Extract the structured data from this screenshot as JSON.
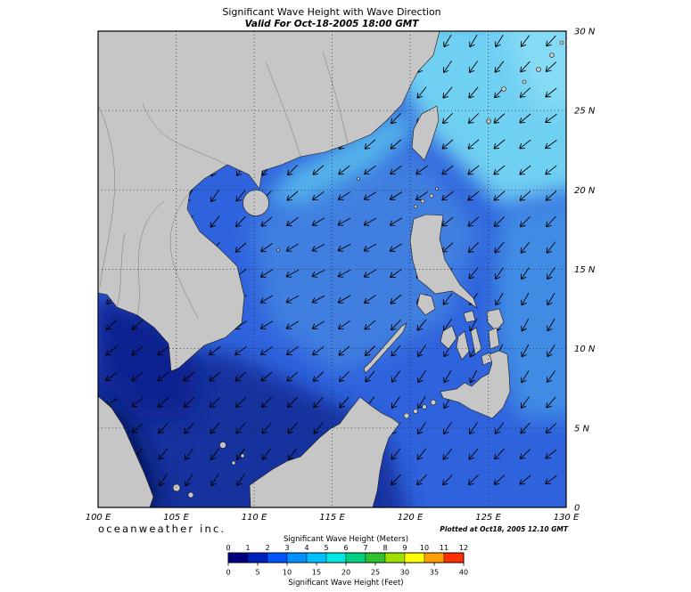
{
  "header": {
    "title": "Significant Wave Height with Wave Direction",
    "subtitle": "Valid For Oct-18-2005 18:00 GMT"
  },
  "map": {
    "lon_labels": [
      "100 E",
      "105 E",
      "110 E",
      "115 E",
      "120 E",
      "125 E",
      "130 E"
    ],
    "lat_labels": [
      "0",
      "5 N",
      "10 N",
      "15 N",
      "20 N",
      "25 N",
      "30 N"
    ],
    "wave_direction": "arrows point from northeast toward southwest",
    "land_color": "#c6c6c6",
    "arrow_color": "#000000",
    "ocean_low_color": "#0a2390",
    "ocean_mid_color": "#2f63dd",
    "ocean_high_color": "#6fd0f2"
  },
  "footer": {
    "branding": "oceanweather inc.",
    "branding_color": "#2b7d9c",
    "plotted_at": "Plotted at Oct18, 2005 12.10 GMT"
  },
  "legend": {
    "meters_label": "Significant Wave Height (Meters)",
    "feet_label": "Significant Wave Height (Feet)",
    "meters_ticks": [
      "0",
      "1",
      "2",
      "3",
      "4",
      "5",
      "6",
      "7",
      "8",
      "9",
      "10",
      "11",
      "12"
    ],
    "feet_ticks": [
      "0",
      "5",
      "10",
      "15",
      "20",
      "25",
      "30",
      "35",
      "40"
    ],
    "colorbar_colors": [
      "#00007f",
      "#0020c0",
      "#0055ff",
      "#0090ff",
      "#00c0ff",
      "#00e8e0",
      "#00d080",
      "#30c030",
      "#a0e000",
      "#ffff00",
      "#ffa000",
      "#ff3000"
    ]
  }
}
